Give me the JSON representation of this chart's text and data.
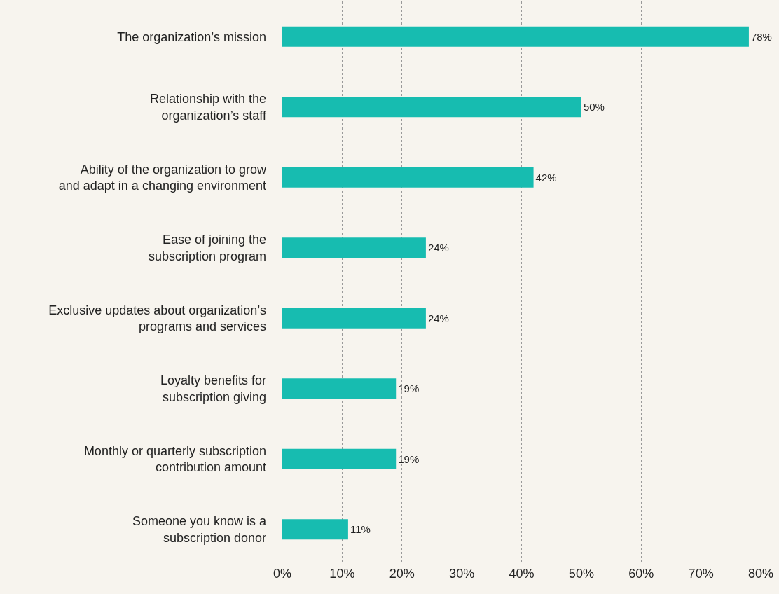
{
  "chart_data": {
    "type": "bar",
    "orientation": "horizontal",
    "categories": [
      "The organization’s mission",
      "Relationship with the\norganization’s staff",
      "Ability of the organization to grow\nand adapt in a changing environment",
      "Ease of joining the\nsubscription program",
      "Exclusive updates about organization’s\nprograms and services",
      "Loyalty benefits for\nsubscription giving",
      "Monthly or quarterly subscription\ncontribution amount",
      "Someone you know is a\nsubscription donor"
    ],
    "values": [
      78,
      50,
      42,
      24,
      24,
      19,
      19,
      11
    ],
    "value_labels": [
      "78%",
      "50%",
      "42%",
      "24%",
      "24%",
      "19%",
      "19%",
      "11%"
    ],
    "color": "#17bcb0",
    "xlim": [
      0,
      80
    ],
    "xticks": [
      {
        "value": 0,
        "label": "0%"
      },
      {
        "value": 10,
        "label": "10%"
      },
      {
        "value": 20,
        "label": "20%"
      },
      {
        "value": 30,
        "label": "30%"
      },
      {
        "value": 40,
        "label": "40%"
      },
      {
        "value": 50,
        "label": "50%"
      },
      {
        "value": 60,
        "label": "60%"
      },
      {
        "value": 70,
        "label": "70%"
      },
      {
        "value": 80,
        "label": "80%"
      }
    ],
    "grid": "x"
  }
}
